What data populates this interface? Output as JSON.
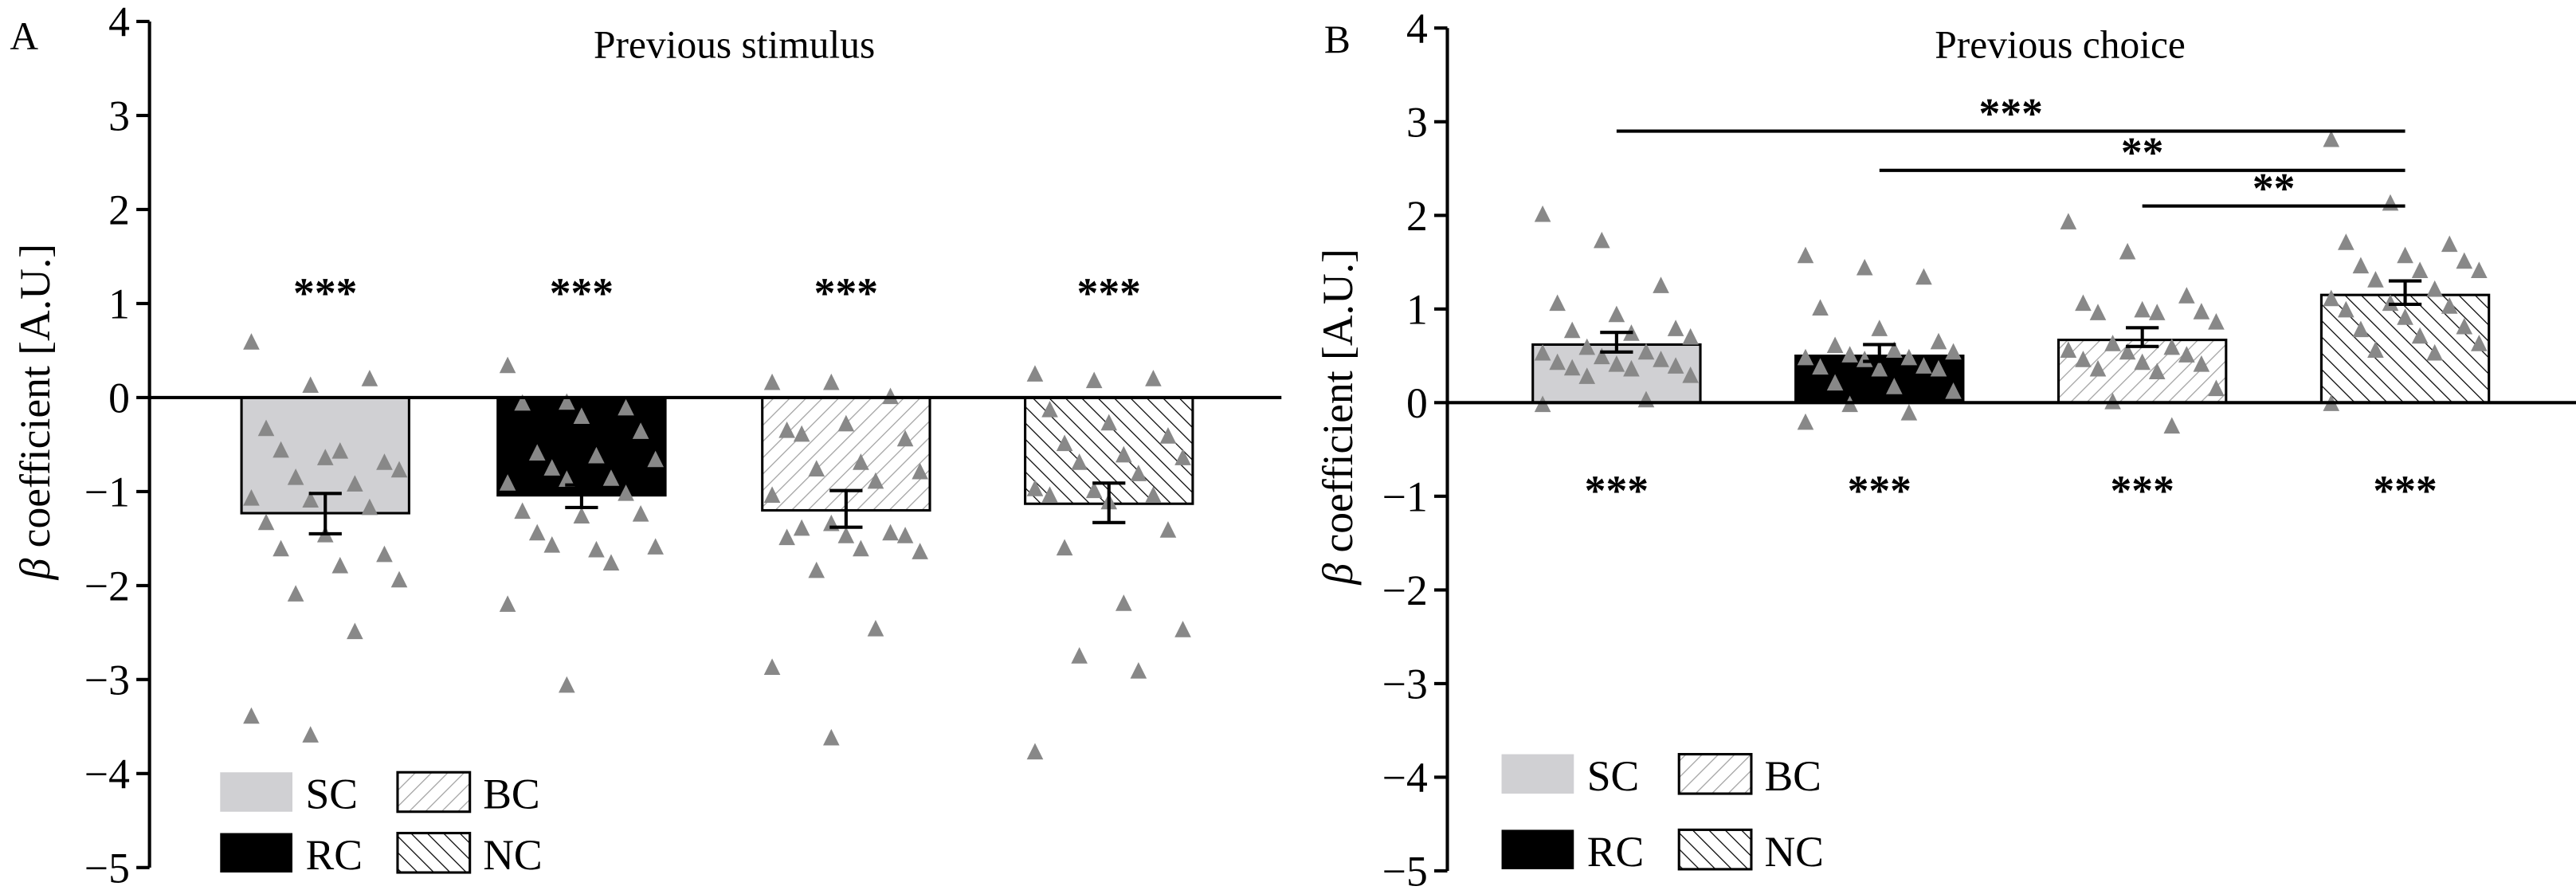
{
  "chart_data": [
    {
      "type": "bar",
      "panel_label": "A",
      "title": "Previous stimulus",
      "ylabel_symbol": "β",
      "ylabel": "coefficient [A.U.]",
      "ylim": [
        -5,
        4
      ],
      "yticks": [
        "4",
        "3",
        "2",
        "1",
        "0",
        "−1",
        "−2",
        "−3",
        "−4",
        "−5"
      ],
      "ytick_values": [
        4,
        3,
        2,
        1,
        0,
        -1,
        -2,
        -3,
        -4,
        -5
      ],
      "categories": [
        "SC",
        "RC",
        "BC",
        "NC"
      ],
      "values": [
        -1.23,
        -1.04,
        -1.2,
        -1.13
      ],
      "error_low": [
        -1.45,
        -1.17,
        -1.38,
        -1.33
      ],
      "error_high": [
        -1.02,
        -0.93,
        -0.99,
        -0.91
      ],
      "significance": [
        "***",
        "***",
        "***",
        "***"
      ],
      "significance_y": 1.2,
      "points": [
        [
          0.58,
          0.12,
          0.19,
          -0.34,
          -0.65,
          -0.7,
          -0.57,
          -0.58,
          -0.78,
          -0.86,
          -0.93,
          -1.08,
          -1.1,
          -1.18,
          -1.34,
          -1.47,
          -1.68,
          -1.62,
          -1.8,
          -1.95,
          -2.1,
          -2.5,
          -3.4,
          -3.6
        ],
        [
          0.33,
          -0.06,
          -0.12,
          -0.07,
          -0.21,
          -0.37,
          -0.6,
          -0.63,
          -0.67,
          -0.76,
          -0.87,
          -0.92,
          -0.88,
          -1.03,
          -1.22,
          -1.27,
          -1.25,
          -1.45,
          -1.63,
          -1.6,
          -1.58,
          -1.77,
          -2.21,
          -3.07
        ],
        [
          0.15,
          0.15,
          0.0,
          -0.36,
          -0.29,
          -0.45,
          -0.4,
          -0.7,
          -0.8,
          -0.77,
          -0.9,
          -1.05,
          -1.35,
          -1.45,
          -1.5,
          -1.48,
          -1.48,
          -1.4,
          -1.62,
          -1.65,
          -1.85,
          -2.47,
          -2.88,
          -3.63
        ],
        [
          0.24,
          0.17,
          0.19,
          -0.14,
          -0.28,
          -0.42,
          -0.5,
          -0.62,
          -0.65,
          -0.7,
          -0.82,
          -0.98,
          -1.0,
          -1.05,
          -1.05,
          -1.12,
          -1.42,
          -1.61,
          -2.2,
          -2.48,
          -2.76,
          -2.92,
          -3.78
        ]
      ],
      "comparisons": [],
      "legend": [
        "SC",
        "BC",
        "RC",
        "NC"
      ],
      "legend_placement": "bottom-left"
    },
    {
      "type": "bar",
      "panel_label": "B",
      "title": "Previous choice",
      "ylabel_symbol": "β",
      "ylabel": "coefficient [A.U.]",
      "ylim": [
        -5,
        4
      ],
      "yticks": [
        "4",
        "3",
        "2",
        "1",
        "0",
        "−1",
        "−2",
        "−3",
        "−4",
        "−5"
      ],
      "ytick_values": [
        4,
        3,
        2,
        1,
        0,
        -1,
        -2,
        -3,
        -4,
        -5
      ],
      "categories": [
        "SC",
        "RC",
        "BC",
        "NC"
      ],
      "values": [
        0.62,
        0.5,
        0.67,
        1.15
      ],
      "error_low": [
        0.54,
        0.44,
        0.6,
        1.05
      ],
      "error_high": [
        0.75,
        0.62,
        0.8,
        1.3
      ],
      "significance": [
        "***",
        "***",
        "***",
        "***"
      ],
      "significance_y": -0.85,
      "points": [
        [
          2.0,
          1.72,
          1.24,
          1.05,
          0.93,
          0.78,
          0.76,
          0.73,
          0.69,
          0.58,
          0.53,
          0.52,
          0.48,
          0.45,
          0.42,
          0.4,
          0.38,
          0.36,
          0.35,
          0.28,
          0.27,
          0.02,
          -0.03
        ],
        [
          1.56,
          1.43,
          1.33,
          1.0,
          0.78,
          0.64,
          0.6,
          0.55,
          0.53,
          0.5,
          0.47,
          0.47,
          0.45,
          0.38,
          0.37,
          0.35,
          0.35,
          0.2,
          0.16,
          0.11,
          -0.03,
          -0.12,
          -0.22
        ],
        [
          1.92,
          1.6,
          1.13,
          1.05,
          0.98,
          0.96,
          0.95,
          0.95,
          0.85,
          0.62,
          0.58,
          0.55,
          0.53,
          0.5,
          0.45,
          0.42,
          0.4,
          0.35,
          0.32,
          0.14,
          0.0,
          -0.26
        ],
        [
          2.8,
          2.12,
          1.68,
          1.7,
          1.56,
          1.5,
          1.45,
          1.4,
          1.4,
          1.3,
          1.2,
          1.1,
          1.05,
          1.02,
          0.98,
          0.9,
          0.8,
          0.77,
          0.7,
          0.62,
          0.55,
          0.52,
          -0.02
        ]
      ],
      "comparisons": [
        {
          "from": "SC",
          "to": "NC",
          "label": "***",
          "y": 2.9
        },
        {
          "from": "RC",
          "to": "NC",
          "label": "**",
          "y": 2.48
        },
        {
          "from": "BC",
          "to": "NC",
          "label": "**",
          "y": 2.1
        }
      ],
      "legend": [
        "SC",
        "BC",
        "RC",
        "NC"
      ],
      "legend_placement": "bottom-left"
    }
  ],
  "colors": {
    "SC": "#d0d0d3",
    "RC": "#000000",
    "BC_hatch": "#a0a0a0",
    "NC_hatch": "#000000",
    "points": "#888888"
  }
}
